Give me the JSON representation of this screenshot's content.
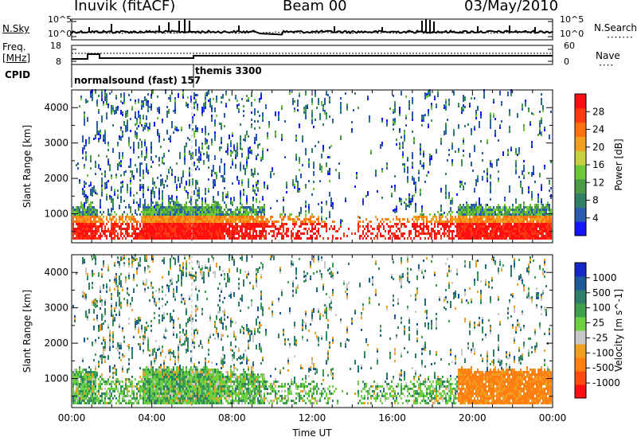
{
  "header": {
    "station": "Inuvik (fitACF)",
    "beam": "Beam 00",
    "date": "03/May/2010"
  },
  "summary": {
    "nsky_label": "N.Sky",
    "nsky_ticks": [
      "10^5",
      "10^0"
    ],
    "nsearch_label": "N.Search",
    "freq_label_line1": "Freq.",
    "freq_label_line2": "[MHz]",
    "freq_ticks": [
      "18",
      "8"
    ],
    "nave_label": "Nave",
    "nave_ticks": [
      "60",
      "0"
    ],
    "cpid_label": "CPID",
    "cpid_names": [
      "normalsound (fast) 157",
      "themis 3300"
    ]
  },
  "chart_data": [
    {
      "type": "heatmap",
      "name": "power",
      "ylabel": "Slant Range [km]",
      "xlabel": "Time UT",
      "x_ticks": [
        "00:00",
        "04:00",
        "08:00",
        "12:00",
        "16:00",
        "20:00",
        "00:00"
      ],
      "y_ticks": [
        "1000",
        "2000",
        "3000",
        "4000"
      ],
      "ylim": [
        180,
        4500
      ],
      "colorbar": {
        "label": "Power [dB]",
        "ticks": [
          "4",
          "8",
          "12",
          "16",
          "20",
          "24",
          "28"
        ],
        "colors": [
          "#1414ff",
          "#2a5cb0",
          "#2f7f66",
          "#4a9a46",
          "#6cc837",
          "#c8d040",
          "#f0a020",
          "#ff7010",
          "#ff3a10",
          "#ff1010"
        ]
      }
    },
    {
      "type": "heatmap",
      "name": "velocity",
      "ylabel": "Slant Range [km]",
      "xlabel": "Time UT",
      "x_ticks": [
        "00:00",
        "04:00",
        "08:00",
        "12:00",
        "16:00",
        "20:00",
        "00:00"
      ],
      "y_ticks": [
        "1000",
        "2000",
        "3000",
        "4000"
      ],
      "ylim": [
        180,
        4500
      ],
      "colorbar": {
        "label": "Velocity [m s^-1]",
        "ticks": [
          "1000",
          "500",
          "100",
          "25",
          "-25",
          "-100",
          "-500",
          "-1000"
        ],
        "colors": [
          "#1428c8",
          "#1e5a9a",
          "#2e7f6a",
          "#3fa04c",
          "#6cd040",
          "#c8c8c8",
          "#f0a020",
          "#ff8010",
          "#ff4a10",
          "#ff1010"
        ]
      }
    }
  ],
  "time_axis_label": "Time UT"
}
